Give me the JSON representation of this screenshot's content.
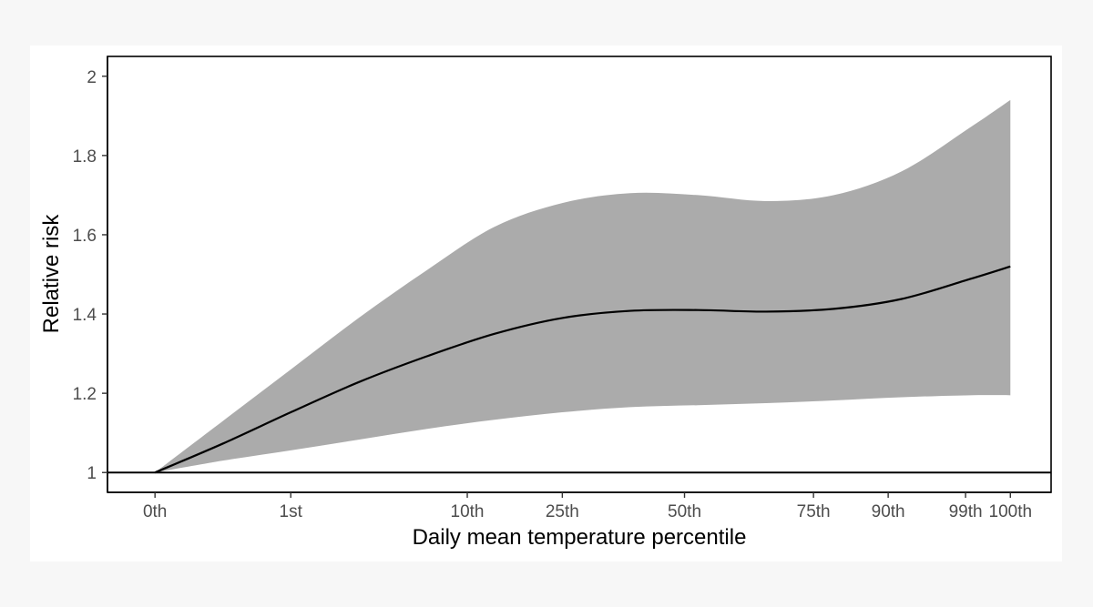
{
  "chart_data": {
    "type": "line",
    "title": "",
    "xlabel": "Daily mean temperature percentile",
    "ylabel": "Relative risk",
    "ylim": [
      0.95,
      2.05
    ],
    "xlim": [
      -0.35,
      6.6
    ],
    "y_ticks": [
      1,
      1.2,
      1.4,
      1.6,
      1.8,
      2
    ],
    "y_tick_labels": [
      "1",
      "1.2",
      "1.4",
      "1.6",
      "1.8",
      "2"
    ],
    "x_ticks": [
      {
        "label": "0th",
        "pos": 0
      },
      {
        "label": "1st",
        "pos": 1
      },
      {
        "label": "10th",
        "pos": 2.3
      },
      {
        "label": "25th",
        "pos": 3.0
      },
      {
        "label": "50th",
        "pos": 3.9
      },
      {
        "label": "75th",
        "pos": 4.85
      },
      {
        "label": "90th",
        "pos": 5.4
      },
      {
        "label": "99th",
        "pos": 5.97
      },
      {
        "label": "100th",
        "pos": 6.3
      }
    ],
    "reference_line": 1,
    "grid": false,
    "series": [
      {
        "name": "Relative risk",
        "x": [
          0,
          0.5,
          1,
          1.5,
          2,
          2.5,
          3,
          3.5,
          4,
          4.5,
          5,
          5.5,
          6,
          6.3
        ],
        "values": [
          1.0,
          1.073,
          1.152,
          1.228,
          1.293,
          1.35,
          1.39,
          1.408,
          1.41,
          1.406,
          1.413,
          1.438,
          1.488,
          1.52
        ],
        "lower": [
          1.0,
          1.03,
          1.056,
          1.083,
          1.11,
          1.133,
          1.152,
          1.165,
          1.17,
          1.175,
          1.182,
          1.19,
          1.195,
          1.195
        ],
        "upper": [
          1.0,
          1.13,
          1.26,
          1.39,
          1.51,
          1.62,
          1.68,
          1.705,
          1.7,
          1.685,
          1.7,
          1.76,
          1.87,
          1.94
        ]
      }
    ],
    "colors": {
      "line": "#000000",
      "band": "#ababab",
      "reference": "#000000",
      "panel": "#ffffff",
      "figure_background": "#f7f7f7"
    }
  }
}
